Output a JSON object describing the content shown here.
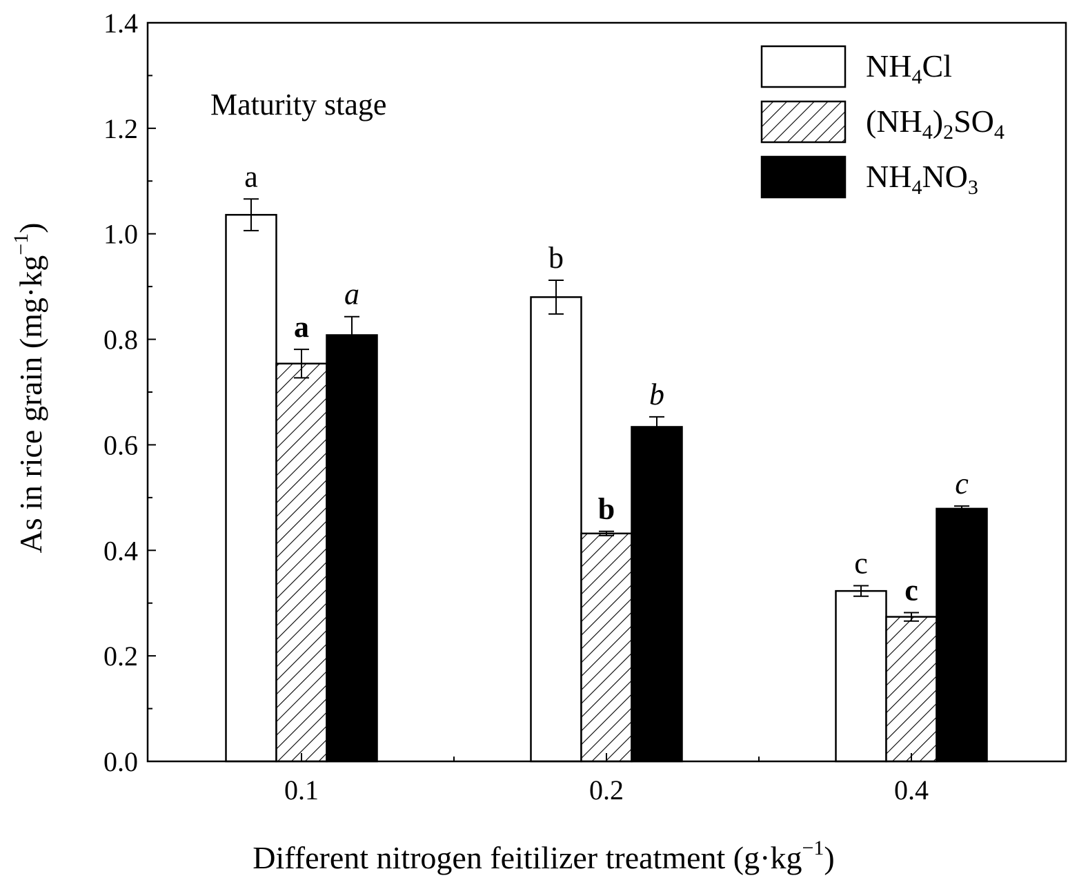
{
  "chart_data": {
    "type": "bar",
    "annotation": "Maturity stage",
    "xlabel_main": "Different nitrogen feitilizer treatment (g·kg",
    "xlabel_sup": "−1",
    "xlabel_close": ")",
    "ylabel_main": "As in rice grain (mg·kg",
    "ylabel_sup": "−1",
    "ylabel_close": ")",
    "ylim": [
      0,
      1.4
    ],
    "yticks": [
      "0.0",
      "0.2",
      "0.4",
      "0.6",
      "0.8",
      "1.0",
      "1.2",
      "1.4"
    ],
    "categories": [
      "0.1",
      "0.2",
      "0.4"
    ],
    "series": [
      {
        "name": "NH4Cl",
        "legend_parts": [
          [
            "NH",
            ""
          ],
          [
            "4",
            "sub"
          ],
          [
            "Cl",
            ""
          ]
        ],
        "fill": "white",
        "values": [
          1.036,
          0.88,
          0.323
        ],
        "errors": [
          0.03,
          0.032,
          0.01
        ],
        "letters": [
          "a",
          "b",
          "c"
        ],
        "letter_style": "normal"
      },
      {
        "name": "(NH4)2SO4",
        "legend_parts": [
          [
            "(NH",
            ""
          ],
          [
            "4",
            "sub"
          ],
          [
            ")",
            ""
          ],
          [
            "2",
            "sub"
          ],
          [
            "SO",
            ""
          ],
          [
            "4",
            "sub"
          ]
        ],
        "fill": "hatch",
        "values": [
          0.754,
          0.432,
          0.274
        ],
        "errors": [
          0.027,
          0.004,
          0.008
        ],
        "letters": [
          "a",
          "b",
          "c"
        ],
        "letter_style": "bold"
      },
      {
        "name": "NH4NO3",
        "legend_parts": [
          [
            "NH",
            ""
          ],
          [
            "4",
            "sub"
          ],
          [
            "NO",
            ""
          ],
          [
            "3",
            "sub"
          ]
        ],
        "fill": "black",
        "values": [
          0.808,
          0.634,
          0.479
        ],
        "errors": [
          0.035,
          0.019,
          0.005
        ],
        "letters": [
          "a",
          "b",
          "c"
        ],
        "letter_style": "italic"
      }
    ],
    "legend_position": "top-right",
    "colors": {
      "axis": "#000000",
      "bar_black": "#000000",
      "bar_white": "#ffffff"
    }
  }
}
